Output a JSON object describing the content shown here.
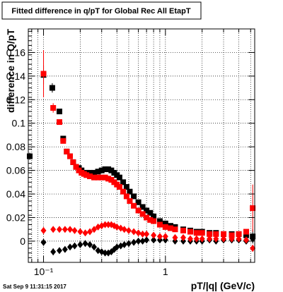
{
  "chart_data": {
    "type": "scatter",
    "title": "Fitted difference in q/pT for Global Rec All EtapT",
    "xlabel": "pT/|q| (GeV/c)",
    "ylabel": "difference in Q/pT",
    "x_scale": "log",
    "xlim": [
      0.075,
      5.4
    ],
    "ylim": [
      -0.018,
      0.18
    ],
    "x_ticks": [
      {
        "value": 0.1,
        "label": "10⁻¹"
      },
      {
        "value": 1,
        "label": "1"
      }
    ],
    "y_ticks": [
      0,
      0.02,
      0.04,
      0.06,
      0.08,
      0.1,
      0.12,
      0.14,
      0.16
    ],
    "y_tick_labels": [
      "0",
      "0.02",
      "0.04",
      "0.06",
      "0.08",
      "0.1",
      "0.12",
      "0.14",
      "0.16"
    ],
    "grid": true,
    "timestamp": "Sat Sep  9 11:31:15 2017",
    "series": [
      {
        "marker": "square",
        "color": "#000000",
        "x": [
          0.077,
          0.1,
          0.118,
          0.135,
          0.145,
          0.155,
          0.165,
          0.175,
          0.185,
          0.195,
          0.205,
          0.215,
          0.225,
          0.24,
          0.26,
          0.28,
          0.3,
          0.32,
          0.34,
          0.36,
          0.38,
          0.4,
          0.42,
          0.45,
          0.48,
          0.51,
          0.55,
          0.6,
          0.65,
          0.7,
          0.75,
          0.8,
          0.9,
          1.0,
          1.1,
          1.2,
          1.4,
          1.6,
          1.8,
          2.0,
          2.3,
          2.6,
          3.0,
          3.5,
          4.0,
          4.6,
          5.2
        ],
        "y": [
          0.072,
          0.141,
          0.13,
          0.11,
          0.087,
          0.076,
          0.072,
          0.067,
          0.063,
          0.062,
          0.06,
          0.058,
          0.058,
          0.058,
          0.058,
          0.059,
          0.06,
          0.061,
          0.061,
          0.06,
          0.058,
          0.056,
          0.054,
          0.05,
          0.046,
          0.042,
          0.038,
          0.033,
          0.029,
          0.026,
          0.024,
          0.021,
          0.017,
          0.015,
          0.013,
          0.012,
          0.01,
          0.009,
          0.008,
          0.008,
          0.007,
          0.007,
          0.006,
          0.006,
          0.006,
          0.005,
          0.004
        ],
        "err": [
          0.003,
          0.008,
          0.004,
          0.002,
          0.002,
          0.0015,
          0.0015,
          0.001,
          0.001,
          0.001,
          0.001,
          0.001,
          0.001,
          0.001,
          0.001,
          0.001,
          0.001,
          0.001,
          0.001,
          0.001,
          0.001,
          0.001,
          0.001,
          0.001,
          0.001,
          0.001,
          0.001,
          0.001,
          0.001,
          0.001,
          0.001,
          0.001,
          0.001,
          0.001,
          0.001,
          0.001,
          0.001,
          0.001,
          0.001,
          0.001,
          0.001,
          0.001,
          0.001,
          0.001,
          0.001,
          0.002,
          0.006
        ]
      },
      {
        "marker": "square",
        "color": "#ff0000",
        "x": [
          0.1,
          0.12,
          0.135,
          0.145,
          0.155,
          0.165,
          0.175,
          0.185,
          0.195,
          0.205,
          0.215,
          0.225,
          0.24,
          0.26,
          0.28,
          0.3,
          0.32,
          0.34,
          0.36,
          0.38,
          0.4,
          0.42,
          0.45,
          0.48,
          0.51,
          0.55,
          0.6,
          0.65,
          0.7,
          0.75,
          0.8,
          0.9,
          1.0,
          1.1,
          1.2,
          1.4,
          1.6,
          1.8,
          2.0,
          2.3,
          2.6,
          3.0,
          3.5,
          4.0,
          4.6,
          5.2
        ],
        "y": [
          0.142,
          0.113,
          0.101,
          0.085,
          0.076,
          0.072,
          0.067,
          0.063,
          0.06,
          0.058,
          0.057,
          0.056,
          0.055,
          0.054,
          0.054,
          0.054,
          0.054,
          0.053,
          0.052,
          0.05,
          0.048,
          0.046,
          0.042,
          0.038,
          0.034,
          0.03,
          0.026,
          0.023,
          0.02,
          0.018,
          0.017,
          0.014,
          0.012,
          0.011,
          0.01,
          0.009,
          0.008,
          0.007,
          0.007,
          0.006,
          0.006,
          0.006,
          0.005,
          0.006,
          0.008,
          0.028
        ],
        "err": [
          0.02,
          0.004,
          0.002,
          0.002,
          0.0015,
          0.0015,
          0.001,
          0.001,
          0.001,
          0.001,
          0.001,
          0.001,
          0.001,
          0.001,
          0.001,
          0.001,
          0.001,
          0.001,
          0.001,
          0.001,
          0.001,
          0.001,
          0.001,
          0.001,
          0.001,
          0.001,
          0.001,
          0.001,
          0.001,
          0.001,
          0.001,
          0.001,
          0.001,
          0.001,
          0.001,
          0.001,
          0.001,
          0.001,
          0.001,
          0.001,
          0.001,
          0.001,
          0.001,
          0.001,
          0.002,
          0.02
        ]
      },
      {
        "marker": "diamond",
        "color": "#000000",
        "x": [
          0.1,
          0.12,
          0.135,
          0.15,
          0.165,
          0.18,
          0.2,
          0.22,
          0.24,
          0.26,
          0.28,
          0.3,
          0.32,
          0.34,
          0.36,
          0.38,
          0.4,
          0.43,
          0.46,
          0.5,
          0.55,
          0.6,
          0.65,
          0.7,
          0.8,
          0.9,
          1.0,
          1.2,
          1.4,
          1.6,
          1.8,
          2.0,
          2.3,
          2.6,
          3.0,
          3.5,
          4.0,
          4.6,
          5.2
        ],
        "y": [
          -0.001,
          -0.009,
          -0.008,
          -0.007,
          -0.005,
          -0.004,
          -0.003,
          -0.002,
          -0.003,
          -0.005,
          -0.008,
          -0.009,
          -0.01,
          -0.01,
          -0.009,
          -0.007,
          -0.005,
          -0.004,
          -0.003,
          -0.002,
          -0.001,
          0.0,
          0.0,
          0.001,
          0.001,
          0.001,
          0.001,
          0.0,
          0.0,
          0.0,
          0.0,
          0.0,
          0.001,
          0.0,
          0.001,
          0.001,
          0.001,
          0.0,
          0.002
        ],
        "err": [
          0.003,
          0.003,
          0.002,
          0.002,
          0.002,
          0.001,
          0.001,
          0.001,
          0.001,
          0.001,
          0.001,
          0.001,
          0.001,
          0.001,
          0.001,
          0.001,
          0.001,
          0.001,
          0.001,
          0.001,
          0.001,
          0.001,
          0.001,
          0.001,
          0.001,
          0.001,
          0.001,
          0.001,
          0.001,
          0.001,
          0.001,
          0.001,
          0.001,
          0.001,
          0.001,
          0.001,
          0.001,
          0.002,
          0.003
        ]
      },
      {
        "marker": "diamond",
        "color": "#ff0000",
        "x": [
          0.1,
          0.12,
          0.135,
          0.15,
          0.165,
          0.18,
          0.2,
          0.22,
          0.24,
          0.26,
          0.28,
          0.3,
          0.32,
          0.34,
          0.36,
          0.38,
          0.4,
          0.43,
          0.46,
          0.5,
          0.55,
          0.6,
          0.65,
          0.7,
          0.8,
          0.9,
          1.0,
          1.2,
          1.4,
          1.6,
          1.8,
          2.0,
          2.3,
          2.6,
          3.0,
          3.5,
          4.0,
          4.6,
          5.2
        ],
        "y": [
          0.009,
          0.01,
          0.01,
          0.01,
          0.01,
          0.009,
          0.008,
          0.007,
          0.008,
          0.01,
          0.012,
          0.013,
          0.014,
          0.014,
          0.014,
          0.013,
          0.012,
          0.011,
          0.01,
          0.009,
          0.008,
          0.007,
          0.006,
          0.006,
          0.005,
          0.004,
          0.004,
          0.003,
          0.003,
          0.002,
          0.002,
          0.002,
          0.002,
          0.002,
          0.002,
          0.002,
          0.002,
          0.001,
          -0.006
        ],
        "err": [
          0.003,
          0.002,
          0.002,
          0.002,
          0.001,
          0.001,
          0.001,
          0.001,
          0.001,
          0.001,
          0.001,
          0.001,
          0.001,
          0.001,
          0.001,
          0.001,
          0.001,
          0.001,
          0.001,
          0.001,
          0.001,
          0.001,
          0.001,
          0.001,
          0.001,
          0.001,
          0.001,
          0.001,
          0.001,
          0.001,
          0.001,
          0.001,
          0.001,
          0.001,
          0.001,
          0.001,
          0.001,
          0.002,
          0.003
        ]
      }
    ]
  }
}
